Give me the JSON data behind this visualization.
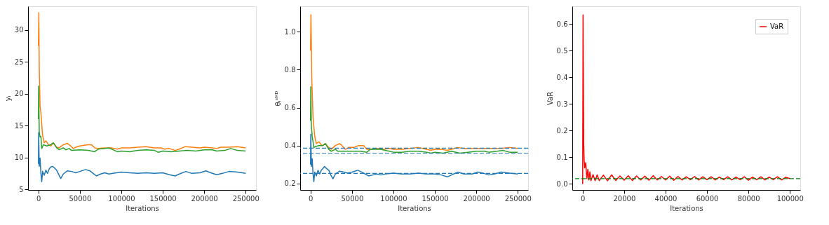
{
  "chart_data": [
    {
      "type": "line",
      "xlabel": "Iterations",
      "ylabel": "yᵢ",
      "xlim": [
        -12500,
        262500
      ],
      "ylim": [
        4.9,
        33.7
      ],
      "xticks": [
        0,
        50000,
        100000,
        150000,
        200000,
        250000
      ],
      "yticks": [
        5,
        10,
        15,
        20,
        25,
        30
      ],
      "grid": false,
      "legend": false,
      "line_style": "solid",
      "series": [
        {
          "color": "#1f77b4",
          "x": [
            0,
            300,
            1000,
            2000,
            3000,
            4000,
            5000,
            7000,
            9000,
            11000,
            13000,
            15000,
            17000,
            19000,
            22000,
            25000,
            27000,
            30000,
            35000,
            40000,
            45000,
            50000,
            57000,
            62000,
            66000,
            70000,
            75000,
            80000,
            85000,
            90000,
            100000,
            110000,
            120000,
            130000,
            140000,
            150000,
            158000,
            165000,
            170000,
            178000,
            185000,
            195000,
            202000,
            208000,
            215000,
            222000,
            230000,
            240000,
            250000
          ],
          "values": [
            9,
            13.9,
            8.6,
            9.9,
            7.5,
            6.2,
            7.8,
            7.2,
            8.0,
            7.5,
            8.2,
            8.5,
            8.6,
            8.4,
            8.0,
            7.2,
            6.7,
            7.4,
            7.9,
            7.8,
            7.6,
            7.8,
            8.1,
            7.9,
            7.5,
            7.1,
            7.4,
            7.6,
            7.4,
            7.5,
            7.7,
            7.6,
            7.5,
            7.6,
            7.5,
            7.6,
            7.3,
            7.1,
            7.4,
            7.8,
            7.5,
            7.6,
            7.9,
            7.6,
            7.3,
            7.5,
            7.8,
            7.7,
            7.5
          ]
        },
        {
          "color": "#ff7f0e",
          "x": [
            0,
            500,
            1000,
            2000,
            3000,
            5000,
            7000,
            9000,
            12000,
            15000,
            18000,
            22000,
            25000,
            30000,
            35000,
            38000,
            42000,
            45000,
            50000,
            55000,
            60000,
            64000,
            68000,
            72000,
            80000,
            88000,
            95000,
            100000,
            110000,
            120000,
            130000,
            140000,
            148000,
            152000,
            158000,
            165000,
            170000,
            177000,
            185000,
            195000,
            200000,
            210000,
            215000,
            220000,
            230000,
            240000,
            250000
          ],
          "values": [
            27.5,
            32.7,
            24,
            18,
            17,
            13.5,
            12.3,
            12.6,
            12.0,
            11.8,
            12.3,
            11.6,
            11.5,
            12.0,
            12.2,
            11.9,
            11.4,
            11.6,
            11.8,
            11.9,
            12.0,
            12.0,
            11.5,
            11.4,
            11.5,
            11.5,
            11.3,
            11.5,
            11.5,
            11.6,
            11.7,
            11.5,
            11.5,
            11.3,
            11.4,
            11.1,
            11.3,
            11.7,
            11.6,
            11.5,
            11.6,
            11.5,
            11.4,
            11.6,
            11.6,
            11.7,
            11.5
          ]
        },
        {
          "color": "#2ca02c",
          "x": [
            0,
            300,
            1000,
            2000,
            3000,
            4000,
            6000,
            10000,
            15000,
            18000,
            22000,
            25000,
            30000,
            33000,
            37000,
            40000,
            50000,
            60000,
            68000,
            72000,
            80000,
            85000,
            90000,
            95000,
            100000,
            110000,
            120000,
            130000,
            140000,
            145000,
            150000,
            160000,
            170000,
            180000,
            190000,
            200000,
            210000,
            215000,
            225000,
            232000,
            240000,
            250000
          ],
          "values": [
            16,
            21.2,
            14,
            13.2,
            13.3,
            11.4,
            12,
            11.8,
            12.0,
            12.3,
            11.5,
            11.2,
            11.5,
            11.2,
            11.4,
            11.1,
            11.2,
            11.1,
            10.9,
            11.3,
            11.4,
            11.5,
            11.2,
            10.9,
            11.0,
            10.9,
            11.1,
            11.2,
            11.1,
            10.8,
            11.0,
            10.9,
            11.0,
            11.1,
            11.0,
            11.2,
            11.2,
            11.0,
            11.1,
            11.4,
            11.1,
            11.0
          ]
        }
      ]
    },
    {
      "type": "line",
      "xlabel": "Iterations",
      "ylabel": "θᵢˢᴹᴰ",
      "xlim": [
        -12500,
        262500
      ],
      "ylim": [
        0.166,
        1.134
      ],
      "xticks": [
        0,
        50000,
        100000,
        150000,
        200000,
        250000
      ],
      "yticks": [
        {
          "value": 0.2,
          "label": "0.2"
        },
        {
          "value": 0.4,
          "label": "0.4"
        },
        {
          "value": 0.6,
          "label": "0.6"
        },
        {
          "value": 0.8,
          "label": "0.8"
        },
        {
          "value": 1.0,
          "label": "1.0"
        }
      ],
      "grid": false,
      "legend": false,
      "line_style": "solid",
      "series": [
        {
          "color": "#1f77b4",
          "x": [
            0,
            300,
            1000,
            2000,
            3000,
            4000,
            5000,
            7000,
            9000,
            11000,
            13000,
            15000,
            17000,
            19000,
            22000,
            25000,
            27000,
            30000,
            35000,
            40000,
            45000,
            50000,
            57000,
            62000,
            66000,
            70000,
            75000,
            80000,
            85000,
            90000,
            100000,
            110000,
            120000,
            130000,
            140000,
            150000,
            158000,
            165000,
            170000,
            178000,
            185000,
            195000,
            202000,
            208000,
            215000,
            222000,
            230000,
            240000,
            250000
          ],
          "values": [
            0.3,
            0.46,
            0.29,
            0.33,
            0.25,
            0.21,
            0.26,
            0.24,
            0.27,
            0.25,
            0.27,
            0.28,
            0.29,
            0.28,
            0.27,
            0.24,
            0.225,
            0.25,
            0.265,
            0.26,
            0.255,
            0.26,
            0.27,
            0.26,
            0.25,
            0.24,
            0.245,
            0.25,
            0.245,
            0.25,
            0.255,
            0.25,
            0.25,
            0.255,
            0.25,
            0.25,
            0.245,
            0.235,
            0.245,
            0.26,
            0.25,
            0.25,
            0.26,
            0.255,
            0.245,
            0.25,
            0.26,
            0.255,
            0.25
          ]
        },
        {
          "color": "#ff7f0e",
          "x": [
            0,
            500,
            1500,
            3000,
            5000,
            7000,
            10000,
            14000,
            18000,
            22000,
            25000,
            30000,
            35000,
            38000,
            42000,
            46000,
            52000,
            58000,
            64000,
            68000,
            72000,
            80000,
            88000,
            95000,
            100000,
            110000,
            120000,
            130000,
            140000,
            145000,
            150000,
            158000,
            165000,
            170000,
            177000,
            185000,
            195000,
            200000,
            210000,
            220000,
            230000,
            240000,
            250000
          ],
          "values": [
            0.9,
            1.09,
            0.75,
            0.55,
            0.45,
            0.41,
            0.42,
            0.4,
            0.41,
            0.39,
            0.38,
            0.4,
            0.41,
            0.4,
            0.38,
            0.39,
            0.39,
            0.4,
            0.4,
            0.38,
            0.38,
            0.385,
            0.38,
            0.385,
            0.38,
            0.38,
            0.385,
            0.39,
            0.38,
            0.375,
            0.38,
            0.38,
            0.375,
            0.38,
            0.39,
            0.385,
            0.385,
            0.385,
            0.385,
            0.385,
            0.385,
            0.39,
            0.385
          ]
        },
        {
          "color": "#2ca02c",
          "x": [
            0,
            300,
            1000,
            2000,
            3000,
            4000,
            6000,
            10000,
            15000,
            18000,
            22000,
            25000,
            30000,
            33000,
            40000,
            50000,
            60000,
            68000,
            72000,
            80000,
            85000,
            90000,
            95000,
            100000,
            110000,
            120000,
            130000,
            140000,
            145000,
            150000,
            160000,
            170000,
            180000,
            190000,
            200000,
            210000,
            215000,
            225000,
            232000,
            240000,
            250000
          ],
          "values": [
            0.53,
            0.71,
            0.5,
            0.45,
            0.42,
            0.39,
            0.395,
            0.4,
            0.4,
            0.41,
            0.38,
            0.37,
            0.38,
            0.37,
            0.37,
            0.37,
            0.37,
            0.365,
            0.38,
            0.38,
            0.38,
            0.375,
            0.37,
            0.365,
            0.365,
            0.37,
            0.37,
            0.365,
            0.36,
            0.365,
            0.36,
            0.37,
            0.36,
            0.365,
            0.37,
            0.37,
            0.365,
            0.37,
            0.375,
            0.365,
            0.365
          ]
        }
      ],
      "ref_lines": [
        {
          "axis": "y",
          "value": 0.386,
          "color": "#1f77b4",
          "line_style": "dashed"
        },
        {
          "axis": "y",
          "value": 0.359,
          "color": "#1f77b4",
          "line_style": "dashed"
        },
        {
          "axis": "y",
          "value": 0.253,
          "color": "#1f77b4",
          "line_style": "dashed"
        }
      ]
    },
    {
      "type": "line",
      "xlabel": "Iterations",
      "ylabel": "VaR",
      "xlim": [
        -5000,
        105000
      ],
      "ylim": [
        -0.0226,
        0.667
      ],
      "xticks": [
        0,
        20000,
        40000,
        60000,
        80000,
        100000
      ],
      "yticks": [
        {
          "value": 0.0,
          "label": "0.0"
        },
        {
          "value": 0.1,
          "label": "0.1"
        },
        {
          "value": 0.2,
          "label": "0.2"
        },
        {
          "value": 0.3,
          "label": "0.3"
        },
        {
          "value": 0.4,
          "label": "0.4"
        },
        {
          "value": 0.5,
          "label": "0.5"
        },
        {
          "value": 0.6,
          "label": "0.6"
        }
      ],
      "grid": false,
      "legend": "top right",
      "line_style": "solid",
      "series": [
        {
          "name": "VaR",
          "color": "#ff0000",
          "x": [
            0,
            200,
            500,
            700,
            1000,
            1500,
            2000,
            2500,
            3000,
            3500,
            4000,
            5000,
            6000,
            7000,
            8000,
            10000,
            12000,
            14000,
            16000,
            18000,
            20000,
            22000,
            24000,
            26000,
            28000,
            30000,
            32000,
            34000,
            36000,
            38000,
            40000,
            42000,
            44000,
            46000,
            48000,
            50000,
            52000,
            54000,
            56000,
            58000,
            60000,
            62000,
            64000,
            66000,
            68000,
            70000,
            72000,
            74000,
            76000,
            78000,
            80000,
            82000,
            84000,
            86000,
            88000,
            90000,
            92000,
            94000,
            96000,
            98000,
            100000
          ],
          "values": [
            0.0,
            0.635,
            0.15,
            0.09,
            0.06,
            0.08,
            0.02,
            0.055,
            0.015,
            0.045,
            0.012,
            0.035,
            0.012,
            0.034,
            0.013,
            0.033,
            0.012,
            0.034,
            0.013,
            0.03,
            0.014,
            0.031,
            0.013,
            0.03,
            0.015,
            0.029,
            0.014,
            0.031,
            0.015,
            0.028,
            0.015,
            0.029,
            0.014,
            0.028,
            0.015,
            0.027,
            0.016,
            0.028,
            0.015,
            0.027,
            0.016,
            0.027,
            0.015,
            0.026,
            0.016,
            0.027,
            0.015,
            0.026,
            0.016,
            0.027,
            0.014,
            0.026,
            0.016,
            0.027,
            0.015,
            0.026,
            0.016,
            0.027,
            0.015,
            0.025,
            0.02
          ]
        }
      ],
      "ref_lines": [
        {
          "axis": "y",
          "value": 0.02,
          "color": "#008000",
          "line_style": "dashed"
        }
      ]
    }
  ]
}
